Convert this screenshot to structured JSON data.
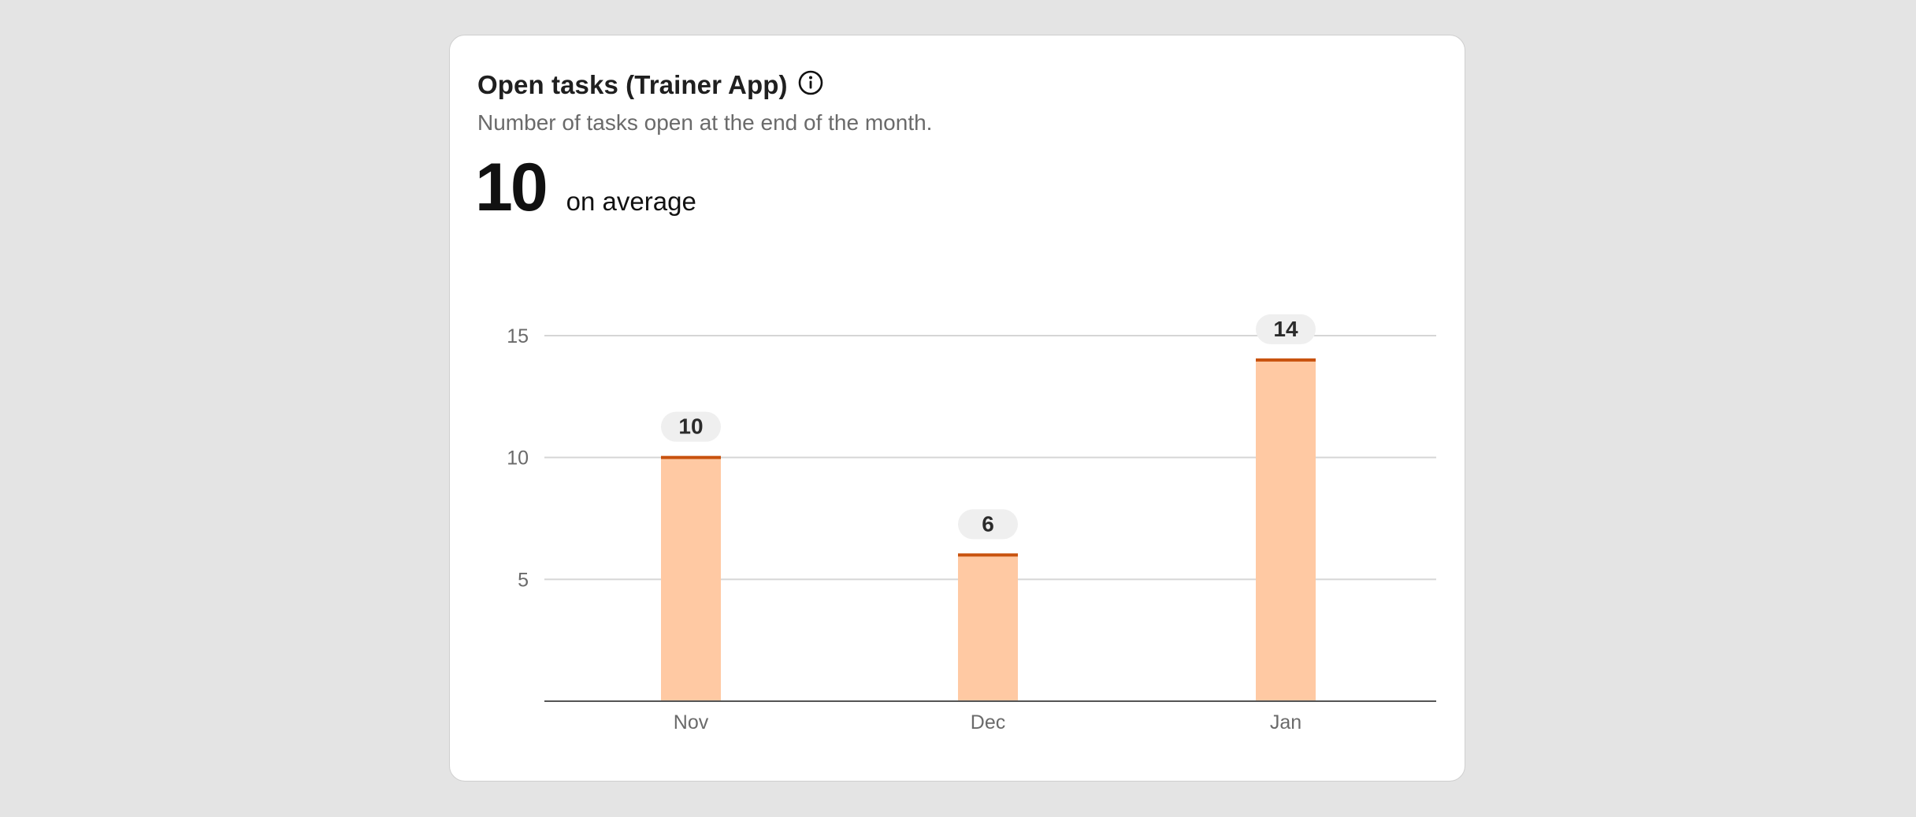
{
  "card": {
    "title": "Open tasks (Trainer App)",
    "subtitle": "Number of tasks open at the end of the month.",
    "stat_value": "10",
    "stat_label": "on average",
    "icon": "info-icon"
  },
  "colors": {
    "bar_fill": "#ffc9a3",
    "bar_top": "#c8520e",
    "grid": "#d6d6d6",
    "axis": "#555555",
    "label_pill": "#efefef",
    "tick_text": "#6a6a6a",
    "value_text": "#2b2b2b"
  },
  "chart_data": {
    "type": "bar",
    "categories": [
      "Nov",
      "Dec",
      "Jan"
    ],
    "values": [
      10,
      6,
      14
    ],
    "data_labels": [
      "10",
      "6",
      "14"
    ],
    "y_ticks": [
      5,
      10,
      15
    ],
    "ylim": [
      0,
      15
    ],
    "grid": true,
    "title": "",
    "xlabel": "",
    "ylabel": ""
  }
}
